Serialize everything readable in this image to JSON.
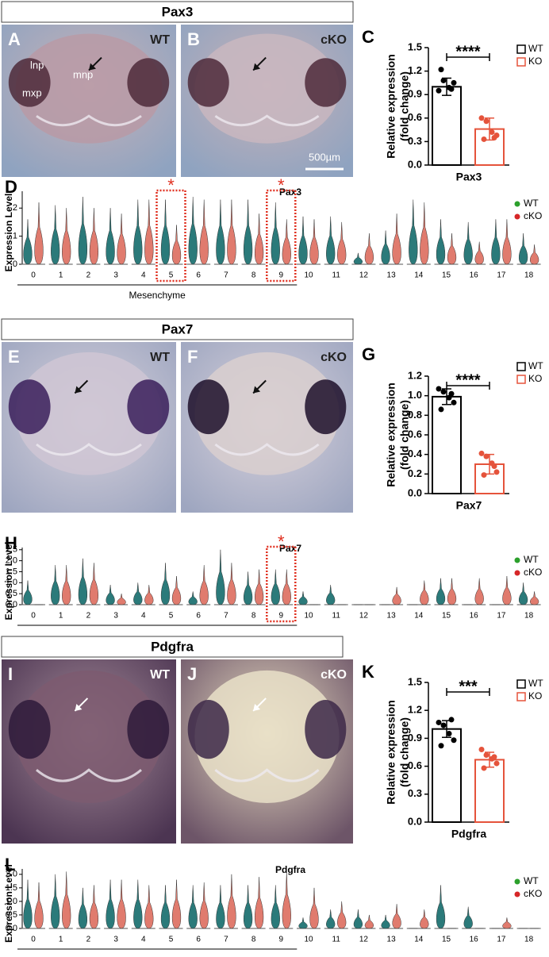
{
  "sections": [
    {
      "title": "Pax3",
      "photos": [
        {
          "letter": "A",
          "genotype": "WT",
          "labels": [
            "lnp",
            "mnp",
            "mxp"
          ]
        },
        {
          "letter": "B",
          "genotype": "cKO",
          "scale_bar": "500µm"
        }
      ]
    },
    {
      "title": "Pax7",
      "photos": [
        {
          "letter": "E",
          "genotype": "WT"
        },
        {
          "letter": "F",
          "genotype": "cKO"
        }
      ]
    },
    {
      "title": "Pdgfra",
      "photos": [
        {
          "letter": "I",
          "genotype": "WT"
        },
        {
          "letter": "J",
          "genotype": "cKO"
        }
      ]
    }
  ],
  "chart_data": [
    {
      "type": "bar",
      "panel": "C",
      "xlabel": "Pax3",
      "ylabel": [
        "Relative expression",
        "(fold change)"
      ],
      "significance": "****",
      "ylim": [
        0,
        1.5
      ],
      "yticks": [
        {
          "value": 0,
          "label": "0.0"
        },
        0.3,
        0.6,
        0.9,
        1.2,
        1.5
      ],
      "series": [
        {
          "name": "WT",
          "color": "#000000",
          "values": [
            1.0
          ],
          "errors": [
            0.11
          ],
          "points": [
            0.95,
            1.08,
            0.99,
            1.05,
            1.22,
            0.97
          ]
        },
        {
          "name": "KO",
          "color": "#e5533b",
          "values": [
            0.46
          ],
          "errors": [
            0.14
          ],
          "points": [
            0.6,
            0.56,
            0.42,
            0.38,
            0.33,
            0.35
          ]
        }
      ]
    },
    {
      "type": "violin",
      "panel": "D",
      "title": "Pax3",
      "ylabel": "Expression Level",
      "categories": [
        "0",
        "1",
        "2",
        "3",
        "4",
        "5",
        "6",
        "7",
        "8",
        "9",
        "10",
        "11",
        "12",
        "13",
        "14",
        "15",
        "16",
        "17",
        "18"
      ],
      "ylim": [
        0,
        2.6
      ],
      "yticks": [
        0,
        1,
        2
      ],
      "highlight": [
        5,
        9
      ],
      "annotation": "*",
      "group_label": "Mesenchyme",
      "group_span": [
        0,
        9
      ],
      "series": [
        {
          "name": "WT",
          "color": "#2b7a7a",
          "legend_color": "#2ca02c",
          "values": [
            1.6,
            2.1,
            2.4,
            2.0,
            2.3,
            2.3,
            2.4,
            2.3,
            2.3,
            2.2,
            1.7,
            1.7,
            0.4,
            1.2,
            2.3,
            1.6,
            1.5,
            1.6,
            1.1
          ]
        },
        {
          "name": "cKO",
          "color": "#e07b6e",
          "legend_color": "#d62728",
          "values": [
            2.2,
            2.0,
            2.0,
            1.8,
            2.3,
            1.4,
            2.3,
            2.3,
            1.8,
            1.6,
            1.6,
            1.5,
            1.1,
            1.8,
            2.2,
            1.1,
            0.8,
            1.6,
            0.7
          ]
        }
      ]
    },
    {
      "type": "bar",
      "panel": "G",
      "xlabel": "Pax7",
      "ylabel": [
        "Relative expression",
        "(fold change)"
      ],
      "significance": "****",
      "ylim": [
        0,
        1.2
      ],
      "yticks": [
        {
          "value": 0,
          "label": "0.0"
        },
        0.2,
        0.4,
        0.6,
        0.8,
        {
          "value": 1,
          "label": "1.0"
        },
        1.2
      ],
      "series": [
        {
          "name": "WT",
          "color": "#000000",
          "values": [
            0.99
          ],
          "errors": [
            0.08
          ],
          "points": [
            1.07,
            1.04,
            0.98,
            0.93,
            0.86,
            1.02
          ]
        },
        {
          "name": "KO",
          "color": "#e5533b",
          "values": [
            0.3
          ],
          "errors": [
            0.1
          ],
          "points": [
            0.41,
            0.38,
            0.31,
            0.22,
            0.19,
            0.28
          ]
        }
      ]
    },
    {
      "type": "violin",
      "panel": "H",
      "title": "Pax7",
      "ylabel": "Expression Level",
      "categories": [
        "0",
        "1",
        "2",
        "3",
        "4",
        "5",
        "6",
        "7",
        "8",
        "9",
        "10",
        "11",
        "12",
        "13",
        "14",
        "15",
        "16",
        "17",
        "18"
      ],
      "ylim": [
        0,
        2.6
      ],
      "yticks": [
        {
          "value": 0,
          "label": "0.0"
        },
        0.5,
        {
          "value": 1,
          "label": "1.0"
        },
        1.5,
        {
          "value": 2,
          "label": "2.0"
        },
        2.5
      ],
      "highlight": [
        9
      ],
      "annotation": "*",
      "group_span": [
        0,
        9
      ],
      "series": [
        {
          "name": "WT",
          "color": "#2b7a7a",
          "legend_color": "#2ca02c",
          "values": [
            1.1,
            1.8,
            2.1,
            0.9,
            1.0,
            1.9,
            0.6,
            2.5,
            1.5,
            1.6,
            0.6,
            0.9,
            0,
            0,
            0,
            1.2,
            0,
            0,
            1.0
          ]
        },
        {
          "name": "cKO",
          "color": "#e07b6e",
          "legend_color": "#d62728",
          "values": [
            0,
            1.8,
            1.9,
            0.5,
            0.9,
            1.3,
            1.8,
            1.9,
            1.6,
            1.6,
            0,
            0,
            0,
            0.8,
            1.1,
            1.2,
            1.2,
            1.3,
            0.6
          ]
        }
      ]
    },
    {
      "type": "bar",
      "panel": "K",
      "xlabel": "Pdgfra",
      "ylabel": [
        "Relative expression",
        "(fold change)"
      ],
      "significance": "***",
      "ylim": [
        0,
        1.5
      ],
      "yticks": [
        {
          "value": 0,
          "label": "0.0"
        },
        0.3,
        0.6,
        0.9,
        1.2,
        1.5
      ],
      "series": [
        {
          "name": "WT",
          "color": "#000000",
          "values": [
            1.0
          ],
          "errors": [
            0.09
          ],
          "points": [
            1.07,
            1.04,
            0.95,
            0.88,
            0.82,
            1.1
          ]
        },
        {
          "name": "KO",
          "color": "#e5533b",
          "values": [
            0.67
          ],
          "errors": [
            0.08
          ],
          "points": [
            0.78,
            0.72,
            0.68,
            0.63,
            0.58,
            0.7
          ]
        }
      ]
    },
    {
      "type": "violin",
      "panel": "L",
      "title": "Pdgfra",
      "ylabel": "Expression Level",
      "categories": [
        "0",
        "1",
        "2",
        "3",
        "4",
        "5",
        "6",
        "7",
        "8",
        "9",
        "10",
        "11",
        "12",
        "13",
        "14",
        "15",
        "16",
        "17",
        "18"
      ],
      "ylim": [
        0,
        2.2
      ],
      "yticks": [
        {
          "value": 0,
          "label": "0.0"
        },
        0.5,
        {
          "value": 1,
          "label": "1.0"
        },
        1.5,
        {
          "value": 2,
          "label": "2.0"
        }
      ],
      "group_span": [
        0,
        9
      ],
      "series": [
        {
          "name": "WT",
          "color": "#2b7a7a",
          "legend_color": "#2ca02c",
          "values": [
            1.8,
            2.0,
            1.5,
            1.8,
            1.8,
            1.6,
            1.6,
            1.6,
            1.6,
            1.6,
            0.4,
            0.7,
            0.7,
            0.5,
            0,
            1.6,
            0.8,
            0,
            0
          ]
        },
        {
          "name": "cKO",
          "color": "#e07b6e",
          "legend_color": "#d62728",
          "values": [
            1.7,
            2.1,
            1.6,
            1.8,
            1.6,
            1.8,
            1.7,
            2.0,
            1.9,
            2.1,
            1.5,
            1.0,
            0.5,
            0.9,
            0.7,
            0,
            0,
            0.4,
            0
          ]
        }
      ]
    }
  ]
}
